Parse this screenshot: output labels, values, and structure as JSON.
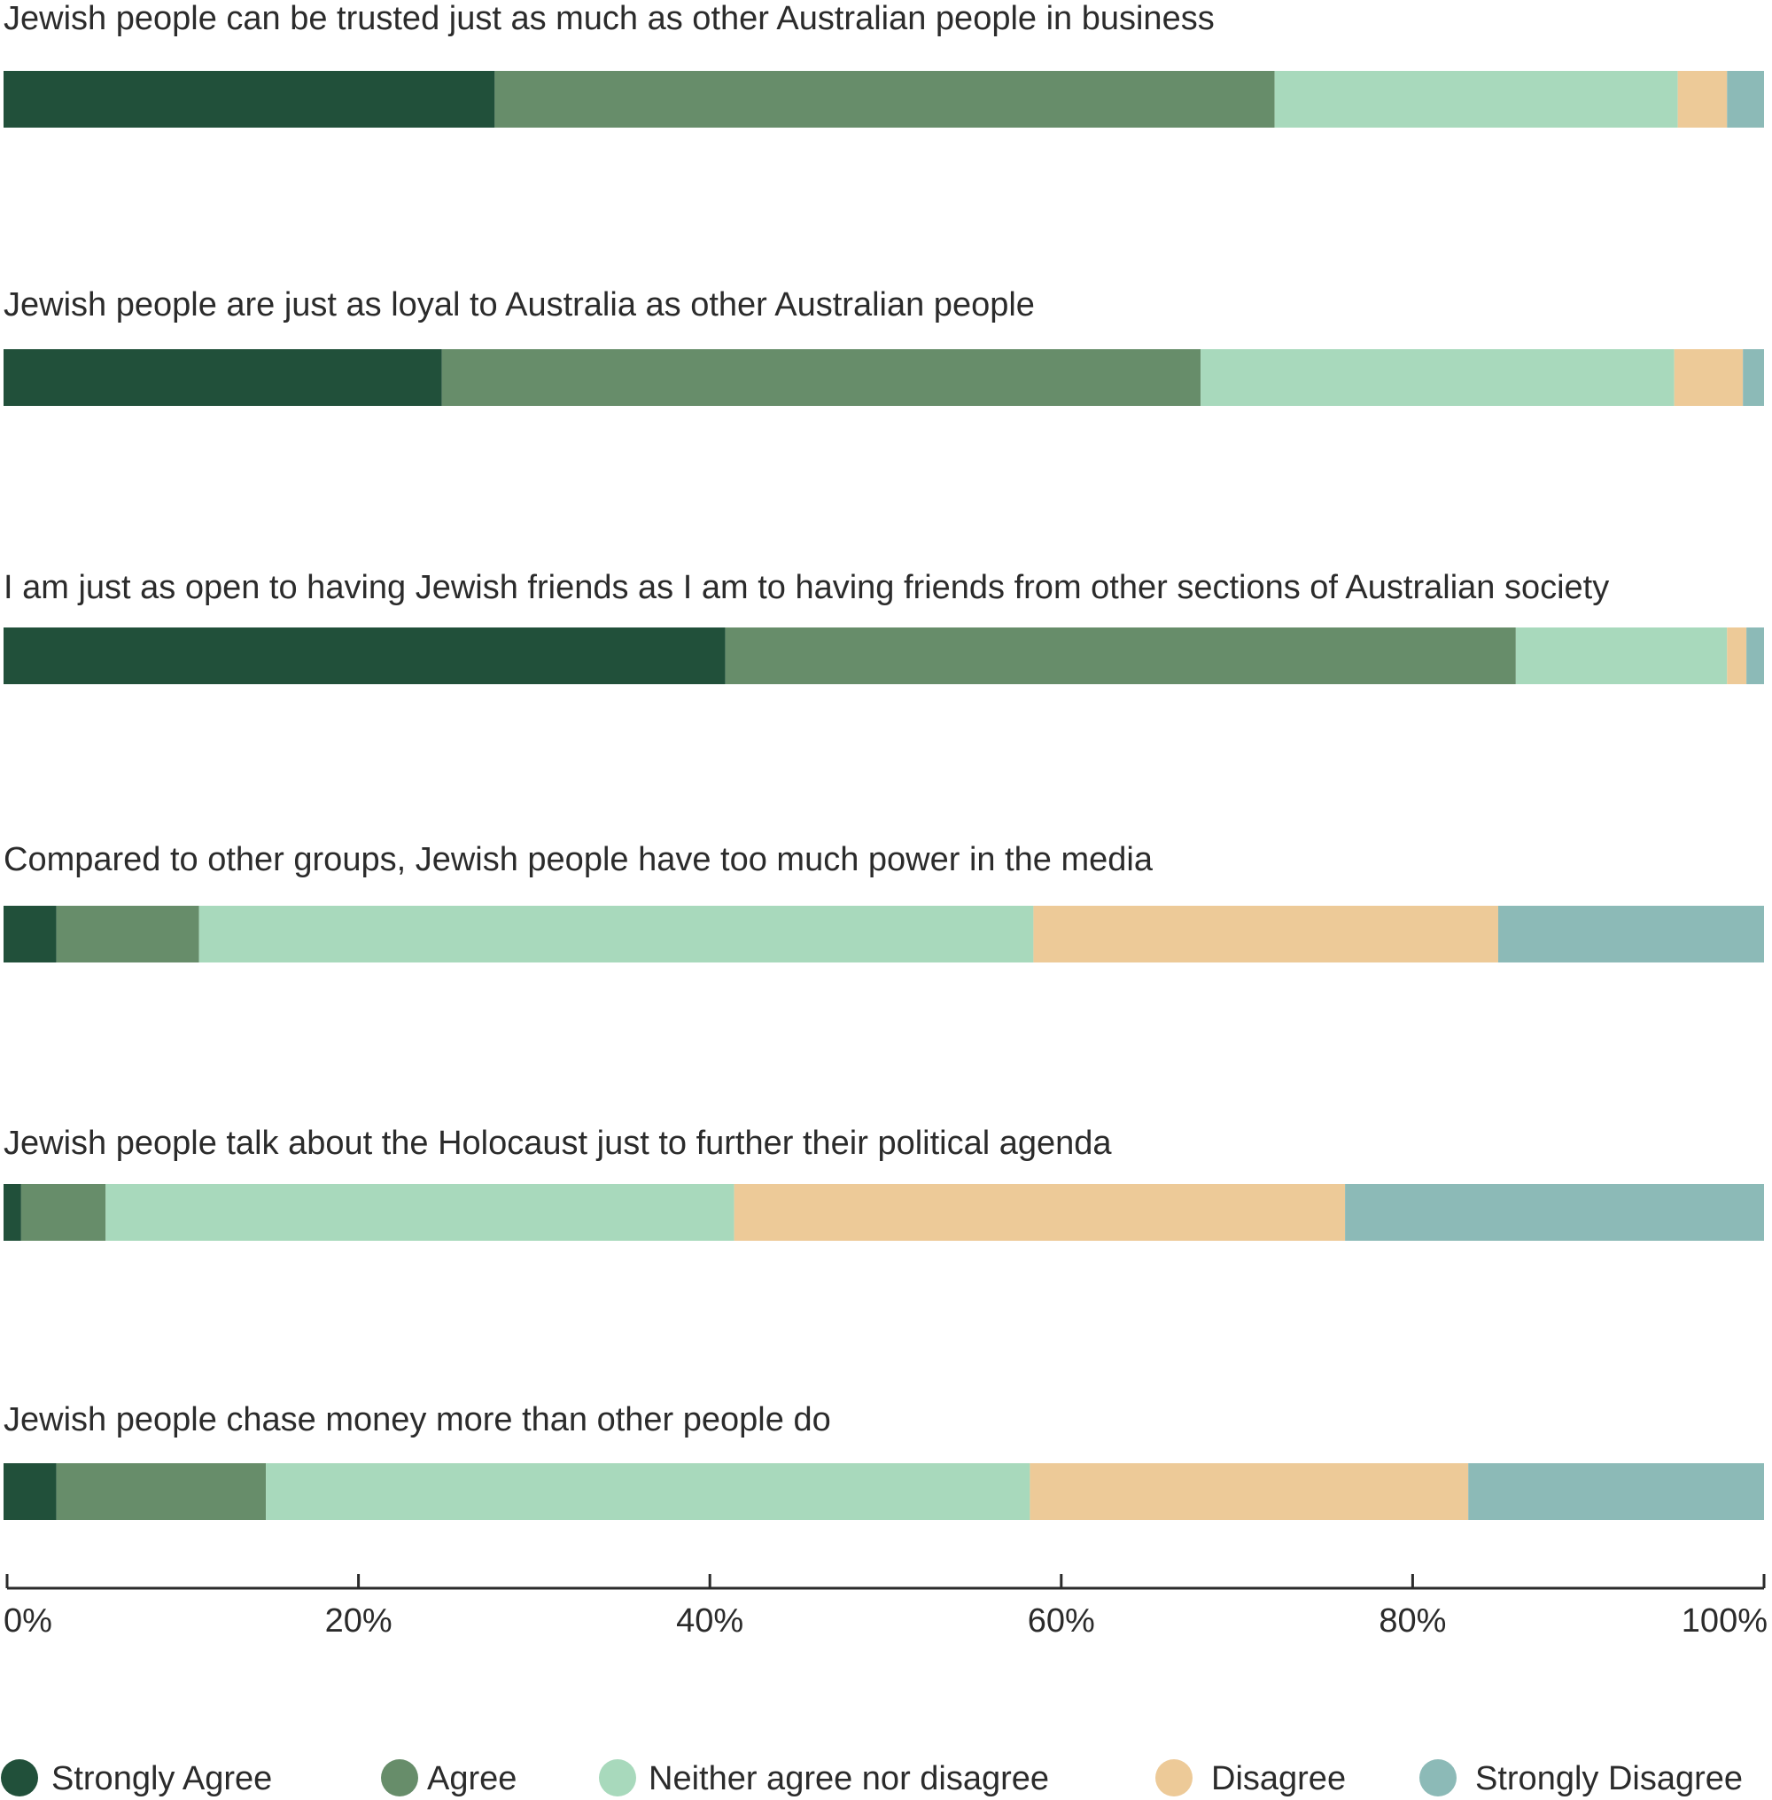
{
  "chart_data": {
    "type": "bar",
    "orientation": "horizontal",
    "stacked": true,
    "categories": [
      "Jewish people can be trusted just as much as other Australian people in business",
      "Jewish people are just as loyal to Australia as other Australian people",
      "I am just as open to having Jewish friends as I am to having friends from other sections of Australian society",
      "Compared to other groups, Jewish people have too much power in the media",
      "Jewish people talk about the Holocaust just to further their political agenda",
      "Jewish people chase money more than other people do"
    ],
    "series": [
      {
        "name": "Strongly Agree",
        "color": "#21503a",
        "values": [
          27.9,
          24.9,
          41.0,
          3.0,
          1.0,
          3.0
        ]
      },
      {
        "name": "Agree",
        "color": "#678d6a",
        "values": [
          44.3,
          43.1,
          44.9,
          8.1,
          4.8,
          11.9
        ]
      },
      {
        "name": "Neither agree nor disagree",
        "color": "#a8d9bc",
        "values": [
          22.9,
          26.9,
          12.0,
          47.4,
          35.7,
          43.4
        ]
      },
      {
        "name": "Disagree",
        "color": "#edca98",
        "values": [
          2.8,
          3.9,
          1.1,
          26.4,
          34.7,
          24.9
        ]
      },
      {
        "name": "Strongly Disagree",
        "color": "#8cbab7",
        "values": [
          2.1,
          1.2,
          1.0,
          15.1,
          23.8,
          16.8
        ]
      }
    ],
    "xlim": [
      0,
      100
    ],
    "ticks": [
      "0%",
      "20%",
      "40%",
      "60%",
      "80%",
      "100%"
    ],
    "xlabel": "",
    "ylabel": "",
    "title": "",
    "grid": false,
    "legend_position": "bottom"
  }
}
